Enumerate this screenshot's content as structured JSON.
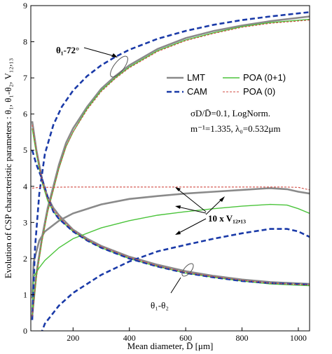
{
  "chart_data": {
    "type": "line",
    "xlabel": "Mean diameter, D̄ [μm]",
    "ylabel": "Evolution of CSP characteristic parameters : θ₁, θ₁-θ₂, V₁₂,₁₃",
    "xlim": [
      50,
      1040
    ],
    "ylim": [
      0,
      9
    ],
    "x_ticks": [
      200,
      400,
      600,
      800,
      1000
    ],
    "y_ticks": [
      0,
      1,
      2,
      3,
      4,
      5,
      6,
      7,
      8,
      9
    ],
    "grid": false,
    "legend": {
      "placement": "upper-right",
      "entries": [
        "LMT",
        "POA (0+1)",
        "CAM",
        "POA (0)"
      ]
    },
    "annotations": {
      "sigma": "σD/D̄=0.1, LogNorm.",
      "index": "m⁻¹=1.335, λ₀=0.532μm",
      "theta1": "θ₁-72°",
      "theta_diff": "θ₁-θ₂",
      "v_label": "10 x V₁₂,₁₃"
    },
    "series": [
      {
        "name": "LMT",
        "color": "#8a8a8a",
        "groups": {
          "theta1": [
            [
              55,
              0.4
            ],
            [
              70,
              1.6
            ],
            [
              90,
              2.6
            ],
            [
              110,
              3.4
            ],
            [
              130,
              4.0
            ],
            [
              150,
              4.6
            ],
            [
              175,
              5.2
            ],
            [
              200,
              5.6
            ],
            [
              250,
              6.2
            ],
            [
              300,
              6.7
            ],
            [
              350,
              7.05
            ],
            [
              400,
              7.35
            ],
            [
              500,
              7.8
            ],
            [
              600,
              8.1
            ],
            [
              700,
              8.3
            ],
            [
              800,
              8.45
            ],
            [
              900,
              8.57
            ],
            [
              1040,
              8.7
            ]
          ],
          "theta_diff": [
            [
              55,
              5.8
            ],
            [
              70,
              5.0
            ],
            [
              90,
              4.2
            ],
            [
              110,
              3.7
            ],
            [
              130,
              3.4
            ],
            [
              150,
              3.2
            ],
            [
              200,
              2.8
            ],
            [
              250,
              2.55
            ],
            [
              300,
              2.35
            ],
            [
              400,
              2.05
            ],
            [
              500,
              1.83
            ],
            [
              600,
              1.65
            ],
            [
              700,
              1.52
            ],
            [
              800,
              1.42
            ],
            [
              900,
              1.35
            ],
            [
              1040,
              1.3
            ]
          ],
          "v": [
            [
              55,
              0.9
            ],
            [
              60,
              1.9
            ],
            [
              80,
              2.5
            ],
            [
              100,
              2.75
            ],
            [
              150,
              3.05
            ],
            [
              200,
              3.25
            ],
            [
              300,
              3.5
            ],
            [
              400,
              3.65
            ],
            [
              500,
              3.73
            ],
            [
              600,
              3.8
            ],
            [
              700,
              3.85
            ],
            [
              800,
              3.9
            ],
            [
              900,
              3.95
            ],
            [
              960,
              3.92
            ],
            [
              1000,
              3.85
            ],
            [
              1040,
              3.8
            ]
          ]
        }
      },
      {
        "name": "POA (0+1)",
        "color": "#4bc43b",
        "groups": {
          "theta1": [
            [
              55,
              0.4
            ],
            [
              70,
              1.5
            ],
            [
              90,
              2.5
            ],
            [
              110,
              3.3
            ],
            [
              130,
              3.9
            ],
            [
              150,
              4.5
            ],
            [
              175,
              5.1
            ],
            [
              200,
              5.5
            ],
            [
              250,
              6.15
            ],
            [
              300,
              6.65
            ],
            [
              350,
              7.0
            ],
            [
              400,
              7.3
            ],
            [
              500,
              7.75
            ],
            [
              600,
              8.05
            ],
            [
              700,
              8.25
            ],
            [
              800,
              8.42
            ],
            [
              900,
              8.53
            ],
            [
              1040,
              8.62
            ]
          ],
          "theta_diff": [
            [
              55,
              5.6
            ],
            [
              70,
              4.9
            ],
            [
              90,
              4.1
            ],
            [
              110,
              3.6
            ],
            [
              130,
              3.3
            ],
            [
              150,
              3.1
            ],
            [
              200,
              2.75
            ],
            [
              250,
              2.5
            ],
            [
              300,
              2.3
            ],
            [
              400,
              2.0
            ],
            [
              500,
              1.78
            ],
            [
              600,
              1.6
            ],
            [
              700,
              1.48
            ],
            [
              800,
              1.38
            ],
            [
              900,
              1.3
            ],
            [
              1040,
              1.25
            ]
          ],
          "v": [
            [
              55,
              0.6
            ],
            [
              60,
              1.5
            ],
            [
              80,
              1.75
            ],
            [
              100,
              1.95
            ],
            [
              150,
              2.3
            ],
            [
              200,
              2.55
            ],
            [
              300,
              2.85
            ],
            [
              400,
              3.05
            ],
            [
              500,
              3.2
            ],
            [
              600,
              3.3
            ],
            [
              700,
              3.38
            ],
            [
              800,
              3.45
            ],
            [
              900,
              3.5
            ],
            [
              960,
              3.48
            ],
            [
              1000,
              3.38
            ],
            [
              1040,
              3.25
            ]
          ]
        }
      },
      {
        "name": "CAM",
        "color": "#1a3aa8",
        "groups": {
          "theta1": [
            [
              55,
              0.3
            ],
            [
              65,
              2.3
            ],
            [
              80,
              3.8
            ],
            [
              100,
              4.9
            ],
            [
              130,
              5.7
            ],
            [
              160,
              6.2
            ],
            [
              200,
              6.65
            ],
            [
              250,
              7.05
            ],
            [
              300,
              7.35
            ],
            [
              350,
              7.58
            ],
            [
              400,
              7.78
            ],
            [
              500,
              8.08
            ],
            [
              600,
              8.3
            ],
            [
              700,
              8.47
            ],
            [
              800,
              8.6
            ],
            [
              900,
              8.7
            ],
            [
              1040,
              8.82
            ]
          ],
          "theta_diff": [
            [
              55,
              5.0
            ],
            [
              70,
              4.6
            ],
            [
              90,
              4.2
            ],
            [
              110,
              3.7
            ],
            [
              130,
              3.3
            ],
            [
              150,
              3.1
            ],
            [
              200,
              2.75
            ],
            [
              250,
              2.5
            ],
            [
              300,
              2.3
            ],
            [
              400,
              2.0
            ],
            [
              500,
              1.78
            ],
            [
              600,
              1.6
            ],
            [
              700,
              1.48
            ],
            [
              800,
              1.38
            ],
            [
              900,
              1.32
            ],
            [
              1040,
              1.28
            ]
          ],
          "v": [
            [
              85,
              -0.1
            ],
            [
              100,
              0.2
            ],
            [
              150,
              0.7
            ],
            [
              200,
              1.05
            ],
            [
              250,
              1.3
            ],
            [
              300,
              1.55
            ],
            [
              400,
              1.92
            ],
            [
              500,
              2.2
            ],
            [
              600,
              2.38
            ],
            [
              700,
              2.55
            ],
            [
              800,
              2.7
            ],
            [
              900,
              2.82
            ],
            [
              960,
              2.82
            ],
            [
              1000,
              2.75
            ],
            [
              1040,
              2.6
            ]
          ]
        }
      },
      {
        "name": "POA (0)",
        "color": "#d14a42",
        "groups": {
          "theta1": [
            [
              55,
              0.4
            ],
            [
              70,
              1.5
            ],
            [
              90,
              2.5
            ],
            [
              110,
              3.3
            ],
            [
              130,
              3.9
            ],
            [
              150,
              4.5
            ],
            [
              175,
              5.1
            ],
            [
              200,
              5.5
            ],
            [
              250,
              6.12
            ],
            [
              300,
              6.62
            ],
            [
              350,
              6.98
            ],
            [
              400,
              7.28
            ],
            [
              500,
              7.73
            ],
            [
              600,
              8.03
            ],
            [
              700,
              8.23
            ],
            [
              800,
              8.4
            ],
            [
              900,
              8.51
            ],
            [
              1040,
              8.6
            ]
          ],
          "theta_diff": [
            [
              55,
              5.7
            ],
            [
              70,
              4.95
            ],
            [
              90,
              4.15
            ],
            [
              110,
              3.65
            ],
            [
              130,
              3.35
            ],
            [
              150,
              3.15
            ],
            [
              200,
              2.78
            ],
            [
              250,
              2.52
            ],
            [
              300,
              2.33
            ],
            [
              400,
              2.03
            ],
            [
              500,
              1.8
            ],
            [
              600,
              1.62
            ],
            [
              700,
              1.5
            ],
            [
              800,
              1.4
            ],
            [
              900,
              1.32
            ],
            [
              1040,
              1.27
            ]
          ],
          "v": [
            [
              55,
              3.95
            ],
            [
              80,
              3.97
            ],
            [
              200,
              3.98
            ],
            [
              400,
              3.98
            ],
            [
              600,
              3.98
            ],
            [
              800,
              3.98
            ],
            [
              950,
              3.98
            ],
            [
              1000,
              3.97
            ],
            [
              1040,
              3.9
            ]
          ]
        }
      }
    ]
  }
}
